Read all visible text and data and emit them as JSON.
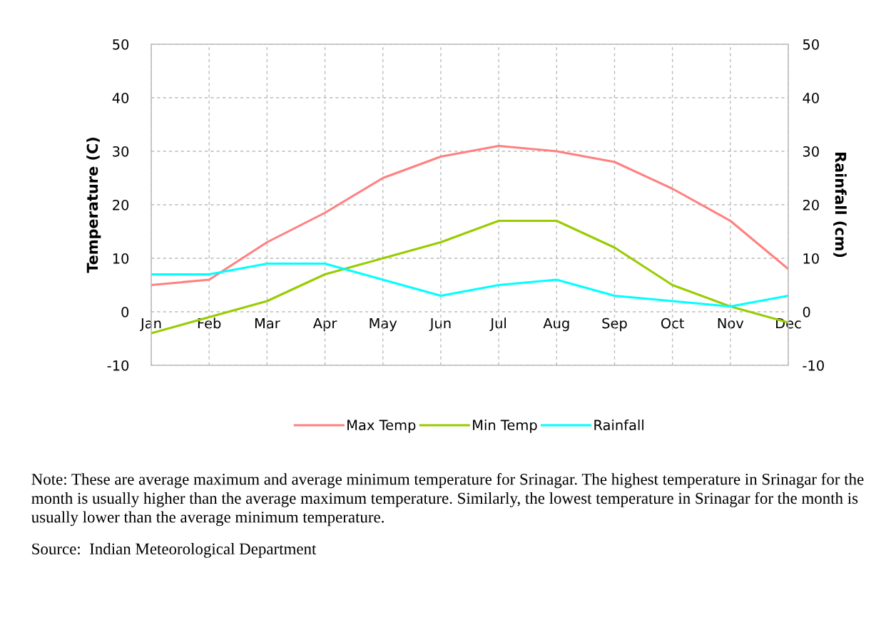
{
  "chart_data": {
    "type": "line",
    "categories": [
      "Jan",
      "Feb",
      "Mar",
      "Apr",
      "May",
      "Jun",
      "Jul",
      "Aug",
      "Sep",
      "Oct",
      "Nov",
      "Dec"
    ],
    "series": [
      {
        "name": "Max Temp",
        "color": "#ff8080",
        "values": [
          5,
          6,
          13,
          18.5,
          25,
          29,
          31,
          30,
          28,
          23,
          17,
          8
        ]
      },
      {
        "name": "Min Temp",
        "color": "#99cc00",
        "values": [
          -4,
          -1,
          2,
          7,
          10,
          13,
          17,
          17,
          12,
          5,
          1,
          -2
        ]
      },
      {
        "name": "Rainfall",
        "color": "#00ffff",
        "axis": "y2",
        "values": [
          7,
          7,
          9,
          9,
          6,
          3,
          5,
          6,
          3,
          2,
          1,
          3
        ]
      }
    ],
    "ylabel": "Temperature (C)",
    "y2label": "Rainfall (cm)",
    "ylim": [
      -10,
      50
    ],
    "yticks": [
      -10,
      0,
      10,
      20,
      30,
      40,
      50
    ],
    "y2lim": [
      -10,
      50
    ],
    "y2ticks": [
      -10,
      0,
      10,
      20,
      30,
      40,
      50
    ],
    "grid": true,
    "legend": "bottom",
    "annotations": [
      "Note: These are average maximum and average minimum temperature for Srinagar. The highest temperature in Srinagar for the month is usually higher than the average maximum temperature. Similarly, the lowest temperature in Srinagar for the month is usually lower than the average minimum temperature.",
      "Source:  Indian Meteorological Department"
    ]
  }
}
